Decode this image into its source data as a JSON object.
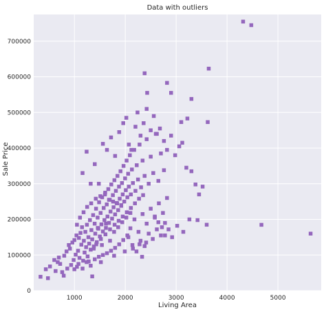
{
  "chart_data": {
    "type": "scatter",
    "title": "Data with outliers",
    "xlabel": "Living Area",
    "ylabel": "Sale Price",
    "xlim": [
      200,
      5850
    ],
    "ylim": [
      0,
      775000
    ],
    "xticks": [
      1000,
      2000,
      3000,
      4000,
      5000
    ],
    "yticks": [
      0,
      100000,
      200000,
      300000,
      400000,
      500000,
      600000,
      700000
    ],
    "grid": true,
    "marker": "square",
    "colors": {
      "background": "#eaeaf2",
      "grid": "#ffffff",
      "marker": "#9467bd"
    },
    "series": [
      {
        "points": [
          [
            334,
            39000
          ],
          [
            438,
            60000
          ],
          [
            480,
            35000
          ],
          [
            520,
            68000
          ],
          [
            605,
            86000
          ],
          [
            630,
            55000
          ],
          [
            672,
            80000
          ],
          [
            694,
            93000
          ],
          [
            720,
            75000
          ],
          [
            760,
            52000
          ],
          [
            790,
            42000
          ],
          [
            800,
            98000
          ],
          [
            845,
            110000
          ],
          [
            860,
            62000
          ],
          [
            890,
            128000
          ],
          [
            912,
            118000
          ],
          [
            936,
            72000
          ],
          [
            960,
            135000
          ],
          [
            985,
            86000
          ],
          [
            1000,
            142000
          ],
          [
            1025,
            101000
          ],
          [
            1040,
            155000
          ],
          [
            1050,
            67000
          ],
          [
            1072,
            112000
          ],
          [
            1088,
            148000
          ],
          [
            1100,
            92000
          ],
          [
            1120,
            162000
          ],
          [
            1136,
            129000
          ],
          [
            1150,
            178000
          ],
          [
            1172,
            84000
          ],
          [
            1186,
            140000
          ],
          [
            1200,
            107000
          ],
          [
            1215,
            165000
          ],
          [
            1230,
            122000
          ],
          [
            1246,
            185000
          ],
          [
            1260,
            96000
          ],
          [
            1275,
            150000
          ],
          [
            1290,
            132000
          ],
          [
            1305,
            198000
          ],
          [
            1320,
            115000
          ],
          [
            1334,
            170000
          ],
          [
            1350,
            144000
          ],
          [
            1368,
            212000
          ],
          [
            1382,
            124000
          ],
          [
            1398,
            188000
          ],
          [
            1410,
            160000
          ],
          [
            1425,
            230000
          ],
          [
            1440,
            136000
          ],
          [
            1456,
            205000
          ],
          [
            1470,
            174000
          ],
          [
            1485,
            248000
          ],
          [
            1500,
            152000
          ],
          [
            1515,
            218000
          ],
          [
            1530,
            186000
          ],
          [
            1545,
            262000
          ],
          [
            1560,
            166000
          ],
          [
            1575,
            232000
          ],
          [
            1590,
            198000
          ],
          [
            1605,
            275000
          ],
          [
            1620,
            176000
          ],
          [
            1636,
            242000
          ],
          [
            1650,
            208000
          ],
          [
            1666,
            285000
          ],
          [
            1680,
            190000
          ],
          [
            1695,
            255000
          ],
          [
            1710,
            222000
          ],
          [
            1725,
            298000
          ],
          [
            1740,
            202000
          ],
          [
            1756,
            268000
          ],
          [
            1770,
            234000
          ],
          [
            1786,
            310000
          ],
          [
            1800,
            214000
          ],
          [
            1815,
            280000
          ],
          [
            1830,
            246000
          ],
          [
            1846,
            322000
          ],
          [
            1860,
            226000
          ],
          [
            1876,
            292000
          ],
          [
            1890,
            258000
          ],
          [
            1906,
            335000
          ],
          [
            1920,
            238000
          ],
          [
            1935,
            302000
          ],
          [
            1950,
            270000
          ],
          [
            1966,
            350000
          ],
          [
            1980,
            250000
          ],
          [
            1996,
            315000
          ],
          [
            2010,
            282000
          ],
          [
            2026,
            365000
          ],
          [
            2040,
            262000
          ],
          [
            2056,
            328000
          ],
          [
            2070,
            292000
          ],
          [
            2090,
            380000
          ],
          [
            2110,
            270000
          ],
          [
            2130,
            340000
          ],
          [
            2150,
            302000
          ],
          [
            2175,
            395000
          ],
          [
            2200,
            280000
          ],
          [
            2225,
            352000
          ],
          [
            2250,
            312000
          ],
          [
            2280,
            410000
          ],
          [
            2310,
            290000
          ],
          [
            2340,
            365000
          ],
          [
            2380,
            322000
          ],
          [
            2420,
            425000
          ],
          [
            2460,
            300000
          ],
          [
            2500,
            376000
          ],
          [
            2550,
            330000
          ],
          [
            2600,
            440000
          ],
          [
            2650,
            308000
          ],
          [
            2700,
            385000
          ],
          [
            2760,
            338000
          ],
          [
            2060,
            150000
          ],
          [
            2100,
            175000
          ],
          [
            2140,
            128000
          ],
          [
            2180,
            200000
          ],
          [
            2220,
            110000
          ],
          [
            2260,
            165000
          ],
          [
            2300,
            140000
          ],
          [
            2340,
            215000
          ],
          [
            2380,
            125000
          ],
          [
            2420,
            188000
          ],
          [
            2460,
            160000
          ],
          [
            2500,
            230000
          ],
          [
            2540,
            145000
          ],
          [
            2580,
            205000
          ],
          [
            2620,
            172000
          ],
          [
            2660,
            245000
          ],
          [
            2700,
            155000
          ],
          [
            2740,
            218000
          ],
          [
            2780,
            190000
          ],
          [
            2820,
            260000
          ],
          [
            1160,
            330000
          ],
          [
            1240,
            390000
          ],
          [
            1320,
            300000
          ],
          [
            1400,
            355000
          ],
          [
            1480,
            300000
          ],
          [
            1560,
            412000
          ],
          [
            1640,
            395000
          ],
          [
            1720,
            430000
          ],
          [
            1800,
            378000
          ],
          [
            1880,
            445000
          ],
          [
            1960,
            470000
          ],
          [
            2020,
            485000
          ],
          [
            2070,
            410000
          ],
          [
            2120,
            395000
          ],
          [
            2200,
            460000
          ],
          [
            2240,
            500000
          ],
          [
            2300,
            435000
          ],
          [
            2360,
            470000
          ],
          [
            2420,
            510000
          ],
          [
            2500,
            450000
          ],
          [
            2560,
            490000
          ],
          [
            2620,
            440000
          ],
          [
            2680,
            455000
          ],
          [
            2760,
            420000
          ],
          [
            2820,
            395000
          ],
          [
            2900,
            435000
          ],
          [
            2980,
            380000
          ],
          [
            3060,
            405000
          ],
          [
            3120,
            415000
          ],
          [
            3200,
            345000
          ],
          [
            3300,
            335000
          ],
          [
            3380,
            298000
          ],
          [
            3450,
            270000
          ],
          [
            3520,
            292000
          ],
          [
            2580,
            208000
          ],
          [
            2650,
            192000
          ],
          [
            2720,
            178000
          ],
          [
            2780,
            155000
          ],
          [
            2850,
            172000
          ],
          [
            2920,
            150000
          ],
          [
            3020,
            182000
          ],
          [
            3140,
            165000
          ],
          [
            3260,
            200000
          ],
          [
            3420,
            198000
          ],
          [
            3600,
            185000
          ],
          [
            2380,
            610000
          ],
          [
            2430,
            555000
          ],
          [
            2820,
            583000
          ],
          [
            2900,
            555000
          ],
          [
            3300,
            538000
          ],
          [
            3640,
            623000
          ],
          [
            3100,
            473000
          ],
          [
            3220,
            483000
          ],
          [
            3620,
            473000
          ],
          [
            4316,
            755000
          ],
          [
            4476,
            745000
          ],
          [
            4676,
            184750
          ],
          [
            5642,
            160000
          ],
          [
            1050,
            185000
          ],
          [
            1110,
            205000
          ],
          [
            1180,
            220000
          ],
          [
            1250,
            235000
          ],
          [
            1330,
            245000
          ],
          [
            1420,
            258000
          ],
          [
            1510,
            265000
          ],
          [
            1600,
            270000
          ],
          [
            1680,
            255000
          ],
          [
            1760,
            250000
          ],
          [
            1840,
            245000
          ],
          [
            1920,
            240000
          ],
          [
            1000,
            60000
          ],
          [
            1080,
            75000
          ],
          [
            1160,
            62000
          ],
          [
            1240,
            80000
          ],
          [
            1320,
            70000
          ],
          [
            1400,
            88000
          ],
          [
            1480,
            95000
          ],
          [
            1560,
            100000
          ],
          [
            1640,
            105000
          ],
          [
            1720,
            112000
          ],
          [
            1800,
            120000
          ],
          [
            1880,
            130000
          ],
          [
            1960,
            142000
          ],
          [
            2040,
            155000
          ],
          [
            1430,
            130000
          ],
          [
            1520,
            145000
          ],
          [
            1610,
            158000
          ],
          [
            1700,
            172000
          ],
          [
            1790,
            185000
          ],
          [
            1870,
            196000
          ],
          [
            1950,
            208000
          ],
          [
            2030,
            220000
          ],
          [
            2110,
            232000
          ],
          [
            2190,
            245000
          ],
          [
            2270,
            258000
          ],
          [
            2350,
            268000
          ],
          [
            1350,
            40000
          ],
          [
            1520,
            80000
          ],
          [
            1780,
            98000
          ],
          [
            1990,
            110000
          ],
          [
            2150,
            118000
          ],
          [
            2280,
            130000
          ],
          [
            2330,
            95000
          ],
          [
            2410,
            135000
          ],
          [
            1280,
            82000
          ],
          [
            1380,
            118000
          ],
          [
            1460,
            176000
          ],
          [
            1540,
            128000
          ],
          [
            1620,
            188000
          ],
          [
            1700,
            140000
          ],
          [
            1780,
            165000
          ],
          [
            1860,
            178000
          ],
          [
            1940,
            192000
          ],
          [
            2020,
            205000
          ],
          [
            2100,
            218000
          ]
        ]
      }
    ]
  }
}
